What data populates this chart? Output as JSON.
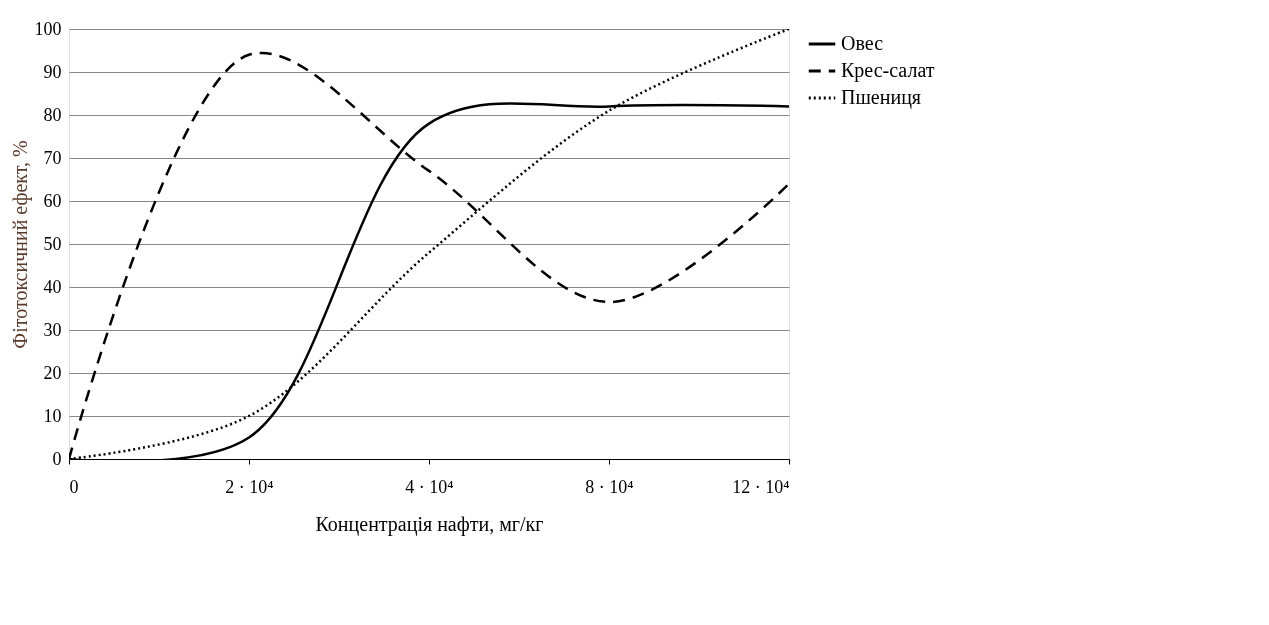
{
  "chart_data": {
    "type": "line",
    "xlabel": "Концентрація нафти, мг/кг",
    "ylabel": "Фітотоксичний ефект, %",
    "categories": [
      "0",
      "2 · 10⁴",
      "4 · 10⁴",
      "8 · 10⁴",
      "12 · 10⁴"
    ],
    "series": [
      {
        "name": "Овес",
        "color": "#000000",
        "line_style": "solid",
        "values": [
          0,
          5,
          78,
          82,
          82
        ]
      },
      {
        "name": "Крес-салат",
        "color": "#000000",
        "line_style": "dashed",
        "values": [
          0,
          94,
          67,
          36.5,
          64
        ]
      },
      {
        "name": "Пшениця",
        "color": "#000000",
        "line_style": "dotted",
        "values": [
          0,
          10,
          48,
          81,
          100
        ]
      }
    ],
    "ylim": [
      0,
      100
    ],
    "yticks": [
      0,
      10,
      20,
      30,
      40,
      50,
      60,
      70,
      80,
      90,
      100
    ],
    "grid": "y",
    "legend": "right",
    "marker": "none"
  }
}
